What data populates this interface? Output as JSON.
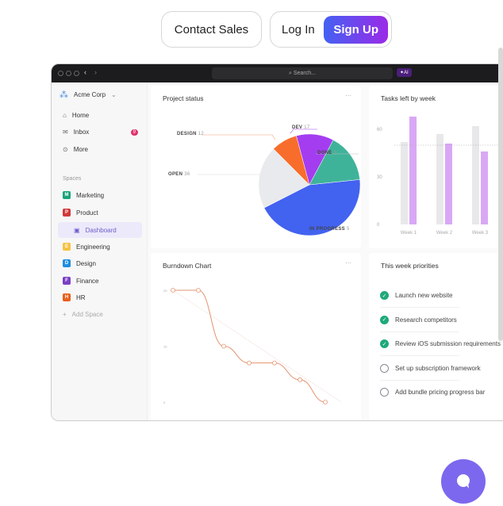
{
  "nav": {
    "contact_sales": "Contact Sales",
    "log_in": "Log In",
    "sign_up": "Sign Up"
  },
  "app": {
    "search_placeholder": "Search...",
    "ai_label": "AI",
    "workspace": "Acme Corp",
    "sidebar": {
      "items": [
        {
          "label": "Home",
          "icon": "home-icon"
        },
        {
          "label": "Inbox",
          "icon": "inbox-icon",
          "badge": "9"
        },
        {
          "label": "More",
          "icon": "more-icon"
        }
      ],
      "spaces_label": "Spaces",
      "spaces": [
        {
          "label": "Marketing",
          "letter": "M",
          "color": "#1aa37a"
        },
        {
          "label": "Product",
          "letter": "P",
          "color": "#d03a3a"
        },
        {
          "label": "Dashboard",
          "sub": true
        },
        {
          "label": "Engineering",
          "letter": "E",
          "color": "#f5c242"
        },
        {
          "label": "Design",
          "letter": "D",
          "color": "#1f8ee0"
        },
        {
          "label": "Finance",
          "letter": "F",
          "color": "#7b3fc4"
        },
        {
          "label": "HR",
          "letter": "H",
          "color": "#e8601c"
        }
      ],
      "add_space": "Add Space"
    },
    "cards": {
      "project_status": "Project status",
      "tasks_left": "Tasks left by week",
      "burndown": "Burndown Chart",
      "priorities": "This week priorities",
      "more": "···"
    },
    "priorities": [
      {
        "label": "Launch new website",
        "done": true
      },
      {
        "label": "Research competitors",
        "done": true
      },
      {
        "label": "Review iOS submission requirements",
        "done": true
      },
      {
        "label": "Set up subscription framework",
        "done": false
      },
      {
        "label": "Add bundle pricing progress bar",
        "done": false
      }
    ]
  },
  "chart_data": [
    {
      "type": "pie",
      "title": "Project status",
      "slices": [
        {
          "label": "IN PROGRESS",
          "value": 5,
          "color": "#4262f0"
        },
        {
          "label": "OPEN",
          "value": 36,
          "color": "#e9eaee"
        },
        {
          "label": "DESIGN",
          "value": 12,
          "color": "#f86d2b"
        },
        {
          "label": "DEV",
          "value": 17,
          "color": "#a43df0"
        },
        {
          "label": "DONE",
          "value": 5,
          "color": "#3fb39a"
        }
      ]
    },
    {
      "type": "bar",
      "title": "Tasks left by week",
      "categories": [
        "Week 1",
        "Week 2",
        "Week 3"
      ],
      "series": [
        {
          "values": [
            52,
            57,
            62
          ],
          "color": "#e8e8ea"
        },
        {
          "values": [
            68,
            51,
            46
          ],
          "color": "#d9a8f5"
        }
      ],
      "ylim": [
        0,
        75
      ],
      "yticks": [
        0,
        30,
        60
      ],
      "reference_line": 50
    },
    {
      "type": "line",
      "title": "Burndown Chart",
      "x": [
        1,
        2,
        3,
        4,
        5,
        6,
        7
      ],
      "y": [
        20,
        20,
        10,
        7,
        7,
        4,
        0
      ],
      "yticks": [
        0,
        10,
        20
      ],
      "color": "#e39470",
      "trend": [
        20,
        0
      ]
    }
  ]
}
